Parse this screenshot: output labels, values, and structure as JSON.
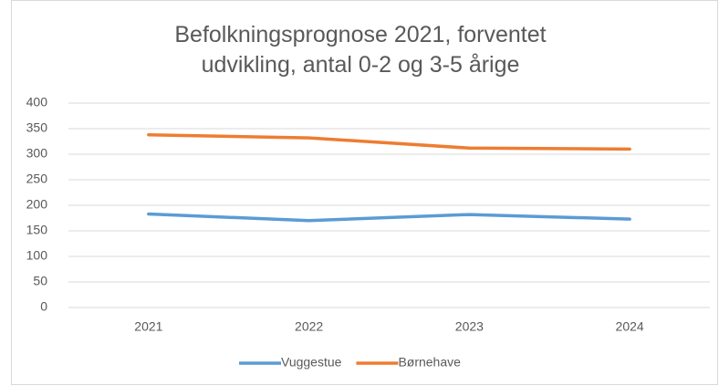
{
  "chart_data": {
    "type": "line",
    "title": "Befolkningsprognose 2021, forventet udvikling, antal 0-2 og 3-5 årige",
    "categories": [
      "2021",
      "2022",
      "2023",
      "2024"
    ],
    "series": [
      {
        "name": "Vuggestue",
        "color": "#5b9bd5",
        "values": [
          183,
          170,
          182,
          173
        ]
      },
      {
        "name": "Børnehave",
        "color": "#ed7d31",
        "values": [
          338,
          332,
          312,
          310
        ]
      }
    ],
    "ylim": [
      0,
      400
    ],
    "yticks": [
      0,
      50,
      100,
      150,
      200,
      250,
      300,
      350,
      400
    ],
    "grid": true,
    "legend": "bottom"
  }
}
